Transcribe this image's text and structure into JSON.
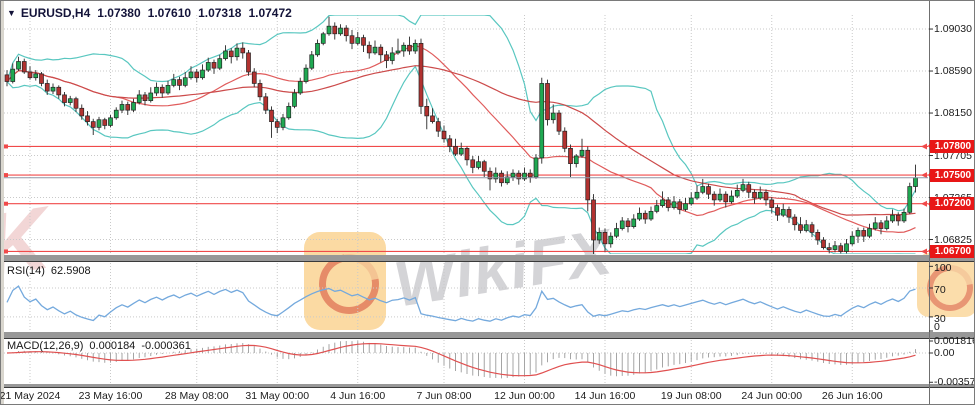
{
  "window": {
    "symbol_title": "EURUSD,H4",
    "dropdown_glyph": "▼",
    "quote": {
      "open": "1.07380",
      "high": "1.07610",
      "low": "1.07318",
      "close": "1.07472"
    }
  },
  "watermark": {
    "text": "WikiFX",
    "fragment": "K"
  },
  "indicators": {
    "rsi": {
      "name": "RSI(14)",
      "period": 14,
      "value": "62.5908",
      "scale": [
        {
          "text": "100",
          "value": 100
        },
        {
          "text": "70",
          "value": 70
        },
        {
          "text": "30",
          "value": 30
        },
        {
          "text": "0",
          "value": 0
        }
      ],
      "dotted_levels": [
        70,
        30
      ]
    },
    "macd": {
      "name": "MACD(12,26,9)",
      "fast": 12,
      "slow": 26,
      "signal": 9,
      "main_value": "0.000184",
      "signal_value": "-0.000361",
      "scale": [
        {
          "text": "0.001816",
          "value": 0.001816
        },
        {
          "text": "0.00",
          "value": 0
        },
        {
          "text": "-0.00357",
          "value": -0.00357
        }
      ]
    }
  },
  "chart_data": {
    "type": "candlestick",
    "title": "EURUSD,H4",
    "price_axis_labels": [
      {
        "text": "1.09030",
        "value": 1.0903
      },
      {
        "text": "1.08590",
        "value": 1.0859
      },
      {
        "text": "1.08150",
        "value": 1.0815
      },
      {
        "text": "1.07705",
        "value": 1.07705
      },
      {
        "text": "1.07265",
        "value": 1.07265
      },
      {
        "text": "1.06825",
        "value": 1.06825
      }
    ],
    "level_lines": [
      {
        "text": "1.07800",
        "value": 1.078
      },
      {
        "text": "1.07500",
        "value": 1.075
      },
      {
        "text": "1.07200",
        "value": 1.072
      },
      {
        "text": "1.06700",
        "value": 1.067
      }
    ],
    "bid_line": {
      "value": 1.07472
    },
    "time_ticks": [
      {
        "i": 4,
        "label": "21 May 2024"
      },
      {
        "i": 18,
        "label": "23 May 16:00"
      },
      {
        "i": 33,
        "label": "28 May 08:00"
      },
      {
        "i": 47,
        "label": "31 May 00:00"
      },
      {
        "i": 61,
        "label": "4 Jun 16:00"
      },
      {
        "i": 76,
        "label": "7 Jun 08:00"
      },
      {
        "i": 90,
        "label": "12 Jun 00:00"
      },
      {
        "i": 104,
        "label": "14 Jun 16:00"
      },
      {
        "i": 119,
        "label": "19 Jun 08:00"
      },
      {
        "i": 133,
        "label": "24 Jun 00:00"
      },
      {
        "i": 147,
        "label": "26 Jun 16:00"
      },
      {
        "i": 161,
        "label": ""
      }
    ],
    "bollinger": {
      "period": 20,
      "deviation": 2
    },
    "ma_slow_period": 45,
    "candles": [
      [
        1.0855,
        1.086,
        1.0843,
        1.0848
      ],
      [
        1.0848,
        1.0867,
        1.0846,
        1.0861
      ],
      [
        1.0861,
        1.0874,
        1.0859,
        1.0869
      ],
      [
        1.0869,
        1.0872,
        1.0856,
        1.0858
      ],
      [
        1.0858,
        1.0864,
        1.085,
        1.0852
      ],
      [
        1.0852,
        1.086,
        1.0849,
        1.0856
      ],
      [
        1.0856,
        1.0858,
        1.0843,
        1.0846
      ],
      [
        1.0846,
        1.085,
        1.0834,
        1.0838
      ],
      [
        1.0838,
        1.0846,
        1.0835,
        1.0842
      ],
      [
        1.0842,
        1.0844,
        1.083,
        1.0834
      ],
      [
        1.0834,
        1.0837,
        1.0822,
        1.0826
      ],
      [
        1.0826,
        1.0833,
        1.0823,
        1.083
      ],
      [
        1.083,
        1.0832,
        1.0816,
        1.082
      ],
      [
        1.082,
        1.0824,
        1.0808,
        1.0812
      ],
      [
        1.0812,
        1.0817,
        1.0802,
        1.0806
      ],
      [
        1.0806,
        1.0809,
        1.0792,
        1.08
      ],
      [
        1.08,
        1.0811,
        1.0797,
        1.0808
      ],
      [
        1.0808,
        1.081,
        1.0798,
        1.0802
      ],
      [
        1.0802,
        1.0813,
        1.08,
        1.081
      ],
      [
        1.081,
        1.0821,
        1.0808,
        1.0818
      ],
      [
        1.0818,
        1.0828,
        1.0815,
        1.0824
      ],
      [
        1.0824,
        1.0827,
        1.0813,
        1.0818
      ],
      [
        1.0818,
        1.083,
        1.0816,
        1.0826
      ],
      [
        1.0826,
        1.0839,
        1.0824,
        1.0834
      ],
      [
        1.0834,
        1.0837,
        1.0823,
        1.0828
      ],
      [
        1.0828,
        1.0842,
        1.0826,
        1.0836
      ],
      [
        1.0836,
        1.0847,
        1.0833,
        1.0842
      ],
      [
        1.0842,
        1.0845,
        1.0831,
        1.0836
      ],
      [
        1.0836,
        1.0849,
        1.0834,
        1.0844
      ],
      [
        1.0844,
        1.0856,
        1.0842,
        1.085
      ],
      [
        1.085,
        1.0853,
        1.0839,
        1.0844
      ],
      [
        1.0844,
        1.0858,
        1.0842,
        1.0852
      ],
      [
        1.0852,
        1.0864,
        1.085,
        1.0858
      ],
      [
        1.0858,
        1.0861,
        1.0847,
        1.0852
      ],
      [
        1.0852,
        1.0866,
        1.085,
        1.086
      ],
      [
        1.086,
        1.0873,
        1.0858,
        1.0868
      ],
      [
        1.0868,
        1.0871,
        1.0856,
        1.0862
      ],
      [
        1.0862,
        1.0876,
        1.086,
        1.0872
      ],
      [
        1.0872,
        1.0886,
        1.087,
        1.088
      ],
      [
        1.088,
        1.0883,
        1.0867,
        1.0874
      ],
      [
        1.0874,
        1.0888,
        1.087,
        1.0883
      ],
      [
        1.0883,
        1.0889,
        1.0872,
        1.0878
      ],
      [
        1.0878,
        1.0881,
        1.0854,
        1.0858
      ],
      [
        1.0858,
        1.0862,
        1.0842,
        1.0846
      ],
      [
        1.0846,
        1.085,
        1.0828,
        1.0832
      ],
      [
        1.0832,
        1.0836,
        1.0814,
        1.0818
      ],
      [
        1.0818,
        1.0822,
        1.0789,
        1.0806
      ],
      [
        1.0806,
        1.0809,
        1.0794,
        1.08
      ],
      [
        1.08,
        1.0814,
        1.0797,
        1.081
      ],
      [
        1.081,
        1.0826,
        1.0808,
        1.0822
      ],
      [
        1.0822,
        1.084,
        1.082,
        1.0836
      ],
      [
        1.0836,
        1.0852,
        1.0834,
        1.0848
      ],
      [
        1.0848,
        1.0866,
        1.0846,
        1.0862
      ],
      [
        1.0862,
        1.088,
        1.086,
        1.0876
      ],
      [
        1.0876,
        1.0892,
        1.0874,
        1.0888
      ],
      [
        1.0888,
        1.09,
        1.0886,
        1.0898
      ],
      [
        1.0898,
        1.0916,
        1.0896,
        1.0906
      ],
      [
        1.0906,
        1.091,
        1.0892,
        1.0898
      ],
      [
        1.0898,
        1.0908,
        1.0896,
        1.0904
      ],
      [
        1.0904,
        1.0907,
        1.089,
        1.0896
      ],
      [
        1.0896,
        1.0902,
        1.0882,
        1.0888
      ],
      [
        1.0888,
        1.09,
        1.0886,
        1.0894
      ],
      [
        1.0894,
        1.0897,
        1.0879,
        1.0886
      ],
      [
        1.0886,
        1.089,
        1.0872,
        1.0878
      ],
      [
        1.0878,
        1.0891,
        1.0876,
        1.0884
      ],
      [
        1.0884,
        1.0887,
        1.0868,
        1.0876
      ],
      [
        1.0876,
        1.088,
        1.0862,
        1.087
      ],
      [
        1.087,
        1.0884,
        1.0866,
        1.0878
      ],
      [
        1.0878,
        1.0893,
        1.0876,
        1.088
      ],
      [
        1.088,
        1.0889,
        1.0874,
        1.0886
      ],
      [
        1.0886,
        1.0895,
        1.0876,
        1.088
      ],
      [
        1.088,
        1.0892,
        1.0877,
        1.0888
      ],
      [
        1.0888,
        1.0893,
        1.0814,
        1.0822
      ],
      [
        1.0822,
        1.083,
        1.0798,
        1.0812
      ],
      [
        1.0812,
        1.082,
        1.0804,
        1.0806
      ],
      [
        1.0806,
        1.081,
        1.079,
        1.0796
      ],
      [
        1.0796,
        1.0802,
        1.0784,
        1.0788
      ],
      [
        1.0788,
        1.0792,
        1.0774,
        1.078
      ],
      [
        1.078,
        1.0788,
        1.077,
        1.0772
      ],
      [
        1.0772,
        1.0784,
        1.077,
        1.0778
      ],
      [
        1.0778,
        1.078,
        1.076,
        1.0766
      ],
      [
        1.0766,
        1.077,
        1.0752,
        1.0758
      ],
      [
        1.0758,
        1.077,
        1.0756,
        1.0764
      ],
      [
        1.0764,
        1.0766,
        1.0748,
        1.0754
      ],
      [
        1.0754,
        1.0758,
        1.0734,
        1.0746
      ],
      [
        1.0746,
        1.0758,
        1.0742,
        1.0752
      ],
      [
        1.0752,
        1.0755,
        1.0738,
        1.0742
      ],
      [
        1.0742,
        1.0754,
        1.074,
        1.0748
      ],
      [
        1.0748,
        1.0756,
        1.0744,
        1.0752
      ],
      [
        1.0752,
        1.0755,
        1.074,
        1.0746
      ],
      [
        1.0746,
        1.0758,
        1.0744,
        1.0752
      ],
      [
        1.0752,
        1.0756,
        1.0742,
        1.0748
      ],
      [
        1.0748,
        1.0772,
        1.0746,
        1.0768
      ],
      [
        1.0768,
        1.0852,
        1.0762,
        1.0846
      ],
      [
        1.0846,
        1.085,
        1.0802,
        1.0808
      ],
      [
        1.0808,
        1.0824,
        1.0804,
        1.0815
      ],
      [
        1.0815,
        1.0818,
        1.0792,
        1.0796
      ],
      [
        1.0796,
        1.08,
        1.0774,
        1.0778
      ],
      [
        1.0778,
        1.0782,
        1.0748,
        1.0762
      ],
      [
        1.0762,
        1.0772,
        1.0758,
        1.077
      ],
      [
        1.077,
        1.0788,
        1.0768,
        1.0776
      ],
      [
        1.0776,
        1.078,
        1.0712,
        1.0724
      ],
      [
        1.0724,
        1.073,
        1.0667,
        1.0682
      ],
      [
        1.0682,
        1.0695,
        1.0678,
        1.069
      ],
      [
        1.069,
        1.0694,
        1.067,
        1.0678
      ],
      [
        1.0678,
        1.069,
        1.0674,
        1.0686
      ],
      [
        1.0686,
        1.07,
        1.0684,
        1.0694
      ],
      [
        1.0694,
        1.0706,
        1.0692,
        1.0702
      ],
      [
        1.0702,
        1.0705,
        1.069,
        1.0696
      ],
      [
        1.0696,
        1.0709,
        1.0694,
        1.0704
      ],
      [
        1.0704,
        1.0716,
        1.0702,
        1.071
      ],
      [
        1.071,
        1.0713,
        1.0699,
        1.0704
      ],
      [
        1.0704,
        1.0717,
        1.0702,
        1.0712
      ],
      [
        1.0712,
        1.0724,
        1.071,
        1.0718
      ],
      [
        1.0718,
        1.0733,
        1.0716,
        1.0724
      ],
      [
        1.0724,
        1.0727,
        1.0712,
        1.0716
      ],
      [
        1.0716,
        1.0728,
        1.0714,
        1.0722
      ],
      [
        1.0722,
        1.0725,
        1.0709,
        1.0714
      ],
      [
        1.0714,
        1.0726,
        1.0712,
        1.072
      ],
      [
        1.072,
        1.0732,
        1.0718,
        1.0726
      ],
      [
        1.0726,
        1.0739,
        1.0724,
        1.0732
      ],
      [
        1.0732,
        1.0746,
        1.073,
        1.0738
      ],
      [
        1.0738,
        1.0741,
        1.0725,
        1.073
      ],
      [
        1.073,
        1.0733,
        1.0718,
        1.0724
      ],
      [
        1.0724,
        1.0736,
        1.0722,
        1.073
      ],
      [
        1.073,
        1.0733,
        1.0716,
        1.0722
      ],
      [
        1.0722,
        1.0734,
        1.072,
        1.0728
      ],
      [
        1.0728,
        1.074,
        1.0726,
        1.0734
      ],
      [
        1.0734,
        1.0746,
        1.0732,
        1.074
      ],
      [
        1.074,
        1.0743,
        1.0726,
        1.0732
      ],
      [
        1.0732,
        1.0735,
        1.072,
        1.0726
      ],
      [
        1.0726,
        1.0738,
        1.0724,
        1.0732
      ],
      [
        1.0732,
        1.0735,
        1.0718,
        1.0724
      ],
      [
        1.0724,
        1.0727,
        1.071,
        1.0716
      ],
      [
        1.0716,
        1.0719,
        1.0702,
        1.0708
      ],
      [
        1.0708,
        1.072,
        1.0706,
        1.0714
      ],
      [
        1.0714,
        1.0717,
        1.07,
        1.0706
      ],
      [
        1.0706,
        1.0709,
        1.0692,
        1.0698
      ],
      [
        1.0698,
        1.0706,
        1.0689,
        1.0692
      ],
      [
        1.0692,
        1.0703,
        1.069,
        1.0698
      ],
      [
        1.0698,
        1.0701,
        1.0685,
        1.069
      ],
      [
        1.069,
        1.0693,
        1.0677,
        1.0682
      ],
      [
        1.0682,
        1.0685,
        1.0672,
        1.0674
      ],
      [
        1.0674,
        1.0679,
        1.0668,
        1.0672
      ],
      [
        1.0672,
        1.0681,
        1.0669,
        1.0676
      ],
      [
        1.0676,
        1.0679,
        1.0668,
        1.067
      ],
      [
        1.067,
        1.0683,
        1.0668,
        1.0678
      ],
      [
        1.0678,
        1.0691,
        1.0676,
        1.0686
      ],
      [
        1.0686,
        1.0695,
        1.0679,
        1.0692
      ],
      [
        1.0692,
        1.0695,
        1.068,
        1.0686
      ],
      [
        1.0686,
        1.0699,
        1.0684,
        1.0694
      ],
      [
        1.0694,
        1.0706,
        1.0692,
        1.07
      ],
      [
        1.07,
        1.0703,
        1.0688,
        1.0694
      ],
      [
        1.0694,
        1.0707,
        1.0692,
        1.0702
      ],
      [
        1.0702,
        1.0714,
        1.07,
        1.0708
      ],
      [
        1.0708,
        1.0711,
        1.0697,
        1.0702
      ],
      [
        1.0702,
        1.0715,
        1.07,
        1.0711
      ],
      [
        1.0711,
        1.0742,
        1.0709,
        1.0738
      ],
      [
        1.0738,
        1.0761,
        1.07318,
        1.07472
      ]
    ]
  },
  "colors": {
    "candle_up": "#1fa952",
    "candle_down": "#b23230",
    "candle_outline": "#242424",
    "wick": "#3c3c3c",
    "bollinger": "#59c7c0",
    "ma_fast": "#e05c5c",
    "ma_slow": "#cc4b4b",
    "level_line": "#f04a4a",
    "badge_bg": "#e81717",
    "bid_line": "#8f96a6",
    "rsi_line": "#74a9dd",
    "macd_hist": "#a5a5a5",
    "macd_signal": "#e05050",
    "grid": "#c9c9c9",
    "separator": "#989898",
    "axis_text": "#1b1b1b"
  }
}
